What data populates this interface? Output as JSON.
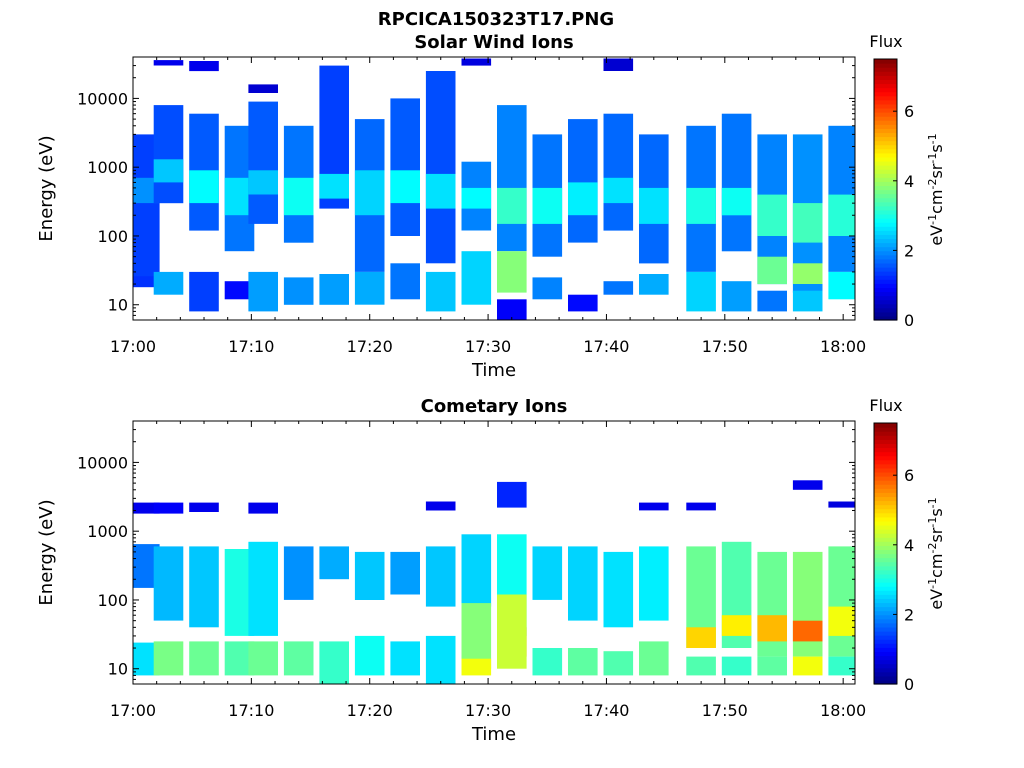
{
  "figure": {
    "title": "RPCICA150323T17.PNG"
  },
  "chart_data": [
    {
      "type": "heatmap",
      "title": "Solar Wind Ions",
      "xlabel": "Time",
      "ylabel": "Energy (eV)",
      "x_ticks": [
        "17:00",
        "17:10",
        "17:20",
        "17:30",
        "17:40",
        "17:50",
        "18:00"
      ],
      "y_ticks": [
        "10",
        "100",
        "1000",
        "10000"
      ],
      "y_scale": "log",
      "x_range": [
        "17:00",
        "18:01"
      ],
      "y_range": [
        6,
        40000
      ],
      "colorbar": {
        "title": "Flux",
        "label": "eV-1cm-2sr-1s-1",
        "ticks": [
          "0",
          "2",
          "4",
          "6"
        ],
        "range": [
          0,
          7.5
        ],
        "colormap": "jet"
      },
      "columns": [
        {
          "t": "17:01",
          "bands": [
            [
              20,
              3000,
              1.4
            ],
            [
              300,
              700,
              2.0
            ],
            [
              18,
              26,
              1.3
            ]
          ]
        },
        {
          "t": "17:03",
          "bands": [
            [
              300,
              8000,
              1.5
            ],
            [
              600,
              1300,
              2.4
            ],
            [
              14,
              30,
              2.2
            ],
            [
              30000,
              36000,
              0.8
            ]
          ]
        },
        {
          "t": "17:06",
          "bands": [
            [
              120,
              6000,
              1.6
            ],
            [
              300,
              900,
              2.8
            ],
            [
              8,
              30,
              1.4
            ],
            [
              25000,
              35000,
              0.8
            ]
          ]
        },
        {
          "t": "17:09",
          "bands": [
            [
              60,
              4000,
              1.8
            ],
            [
              200,
              700,
              2.6
            ],
            [
              12,
              22,
              1.0
            ]
          ]
        },
        {
          "t": "17:11",
          "bands": [
            [
              150,
              9000,
              1.6
            ],
            [
              400,
              900,
              2.4
            ],
            [
              8,
              30,
              2.1
            ],
            [
              12000,
              16000,
              0.6
            ]
          ]
        },
        {
          "t": "17:14",
          "bands": [
            [
              80,
              4000,
              1.8
            ],
            [
              200,
              700,
              2.9
            ],
            [
              10,
              25,
              2.0
            ]
          ]
        },
        {
          "t": "17:17",
          "bands": [
            [
              250,
              30000,
              1.4
            ],
            [
              350,
              800,
              2.6
            ],
            [
              10,
              28,
              2.1
            ]
          ]
        },
        {
          "t": "17:20",
          "bands": [
            [
              30,
              5000,
              1.7
            ],
            [
              200,
              900,
              2.5
            ],
            [
              10,
              30,
              2.2
            ]
          ]
        },
        {
          "t": "17:23",
          "bands": [
            [
              100,
              10000,
              1.6
            ],
            [
              300,
              900,
              2.8
            ],
            [
              12,
              40,
              1.8
            ]
          ]
        },
        {
          "t": "17:26",
          "bands": [
            [
              40,
              25000,
              1.5
            ],
            [
              250,
              800,
              2.6
            ],
            [
              8,
              30,
              2.4
            ]
          ]
        },
        {
          "t": "17:29",
          "bands": [
            [
              120,
              1200,
              1.9
            ],
            [
              250,
              500,
              2.8
            ],
            [
              10,
              60,
              2.5
            ],
            [
              30000,
              38000,
              0.7
            ]
          ]
        },
        {
          "t": "17:32",
          "bands": [
            [
              60,
              8000,
              1.9
            ],
            [
              150,
              500,
              3.2
            ],
            [
              15,
              60,
              3.8
            ],
            [
              6,
              12,
              0.9
            ]
          ]
        },
        {
          "t": "17:35",
          "bands": [
            [
              50,
              3000,
              1.8
            ],
            [
              150,
              500,
              2.9
            ],
            [
              12,
              25,
              1.9
            ]
          ]
        },
        {
          "t": "17:38",
          "bands": [
            [
              80,
              5000,
              1.7
            ],
            [
              200,
              600,
              2.7
            ],
            [
              8,
              14,
              1.0
            ]
          ]
        },
        {
          "t": "17:41",
          "bands": [
            [
              120,
              6000,
              1.7
            ],
            [
              300,
              700,
              2.6
            ],
            [
              14,
              22,
              1.8
            ],
            [
              25000,
              38000,
              0.6
            ]
          ]
        },
        {
          "t": "17:44",
          "bands": [
            [
              40,
              3000,
              1.7
            ],
            [
              150,
              500,
              2.6
            ],
            [
              14,
              28,
              2.2
            ]
          ]
        },
        {
          "t": "17:48",
          "bands": [
            [
              30,
              4000,
              1.8
            ],
            [
              150,
              500,
              3.0
            ],
            [
              8,
              30,
              2.5
            ]
          ]
        },
        {
          "t": "17:51",
          "bands": [
            [
              60,
              6000,
              1.8
            ],
            [
              200,
              500,
              2.9
            ],
            [
              8,
              22,
              2.1
            ]
          ]
        },
        {
          "t": "17:54",
          "bands": [
            [
              20,
              3000,
              1.9
            ],
            [
              100,
              400,
              3.2
            ],
            [
              20,
              50,
              3.6
            ],
            [
              8,
              16,
              1.8
            ]
          ]
        },
        {
          "t": "17:57",
          "bands": [
            [
              15,
              3000,
              2.0
            ],
            [
              80,
              300,
              3.3
            ],
            [
              20,
              40,
              3.9
            ],
            [
              8,
              16,
              2.4
            ]
          ]
        },
        {
          "t": "18:00",
          "bands": [
            [
              30,
              4000,
              1.9
            ],
            [
              100,
              400,
              3.1
            ],
            [
              12,
              30,
              2.8
            ]
          ]
        }
      ]
    },
    {
      "type": "heatmap",
      "title": "Cometary Ions",
      "xlabel": "Time",
      "ylabel": "Energy (eV)",
      "x_ticks": [
        "17:00",
        "17:10",
        "17:20",
        "17:30",
        "17:40",
        "17:50",
        "18:00"
      ],
      "y_ticks": [
        "10",
        "100",
        "1000",
        "10000"
      ],
      "y_scale": "log",
      "x_range": [
        "17:00",
        "18:01"
      ],
      "y_range": [
        6,
        40000
      ],
      "colorbar": {
        "title": "Flux",
        "label": "eV-1cm-2sr-1s-1",
        "ticks": [
          "0",
          "2",
          "4",
          "6"
        ],
        "range": [
          0,
          7.5
        ],
        "colormap": "jet"
      },
      "columns": [
        {
          "t": "17:01",
          "bands": [
            [
              150,
              650,
              1.8
            ],
            [
              8,
              24,
              2.6
            ],
            [
              1800,
              2600,
              0.8
            ]
          ]
        },
        {
          "t": "17:03",
          "bands": [
            [
              50,
              600,
              2.3
            ],
            [
              8,
              25,
              3.7
            ],
            [
              1800,
              2600,
              0.9
            ]
          ]
        },
        {
          "t": "17:06",
          "bands": [
            [
              40,
              600,
              2.4
            ],
            [
              8,
              25,
              3.6
            ],
            [
              1900,
              2600,
              0.8
            ]
          ]
        },
        {
          "t": "17:09",
          "bands": [
            [
              30,
              550,
              3.0
            ],
            [
              8,
              25,
              3.4
            ]
          ]
        },
        {
          "t": "17:11",
          "bands": [
            [
              30,
              700,
              2.6
            ],
            [
              8,
              25,
              3.6
            ],
            [
              1800,
              2600,
              0.8
            ]
          ]
        },
        {
          "t": "17:14",
          "bands": [
            [
              100,
              600,
              2.0
            ],
            [
              8,
              25,
              3.5
            ]
          ]
        },
        {
          "t": "17:17",
          "bands": [
            [
              200,
              600,
              2.2
            ],
            [
              6,
              25,
              3.2
            ]
          ]
        },
        {
          "t": "17:20",
          "bands": [
            [
              100,
              500,
              2.4
            ],
            [
              8,
              30,
              2.9
            ]
          ]
        },
        {
          "t": "17:23",
          "bands": [
            [
              120,
              500,
              2.1
            ],
            [
              8,
              25,
              2.6
            ]
          ]
        },
        {
          "t": "17:26",
          "bands": [
            [
              80,
              600,
              2.4
            ],
            [
              6,
              30,
              2.6
            ],
            [
              2000,
              2700,
              0.8
            ]
          ]
        },
        {
          "t": "17:29",
          "bands": [
            [
              80,
              900,
              2.5
            ],
            [
              10,
              90,
              3.8
            ],
            [
              8,
              14,
              4.6
            ]
          ]
        },
        {
          "t": "17:32",
          "bands": [
            [
              30,
              900,
              2.9
            ],
            [
              15,
              40,
              5.6
            ],
            [
              10,
              120,
              4.3
            ],
            [
              2200,
              5200,
              1.2
            ]
          ]
        },
        {
          "t": "17:35",
          "bands": [
            [
              100,
              600,
              2.5
            ],
            [
              8,
              20,
              3.2
            ]
          ]
        },
        {
          "t": "17:38",
          "bands": [
            [
              50,
              600,
              2.5
            ],
            [
              8,
              20,
              3.5
            ]
          ]
        },
        {
          "t": "17:41",
          "bands": [
            [
              40,
              500,
              2.6
            ],
            [
              8,
              18,
              3.4
            ]
          ]
        },
        {
          "t": "17:44",
          "bands": [
            [
              50,
              600,
              2.7
            ],
            [
              8,
              25,
              3.6
            ],
            [
              2000,
              2600,
              0.8
            ]
          ]
        },
        {
          "t": "17:48",
          "bands": [
            [
              20,
              600,
              3.6
            ],
            [
              20,
              40,
              5.0
            ],
            [
              8,
              15,
              3.4
            ],
            [
              2000,
              2600,
              0.8
            ]
          ]
        },
        {
          "t": "17:51",
          "bands": [
            [
              20,
              700,
              3.4
            ],
            [
              30,
              60,
              4.8
            ],
            [
              8,
              15,
              3.2
            ]
          ]
        },
        {
          "t": "17:54",
          "bands": [
            [
              15,
              500,
              3.6
            ],
            [
              25,
              60,
              5.2
            ],
            [
              8,
              15,
              3.5
            ]
          ]
        },
        {
          "t": "17:57",
          "bands": [
            [
              15,
              500,
              3.8
            ],
            [
              25,
              50,
              5.8
            ],
            [
              8,
              15,
              4.6
            ],
            [
              4000,
              5500,
              0.8
            ]
          ]
        },
        {
          "t": "18:00",
          "bands": [
            [
              15,
              600,
              3.6
            ],
            [
              30,
              80,
              4.6
            ],
            [
              8,
              15,
              3.2
            ],
            [
              2200,
              2700,
              0.7
            ]
          ]
        }
      ]
    }
  ]
}
